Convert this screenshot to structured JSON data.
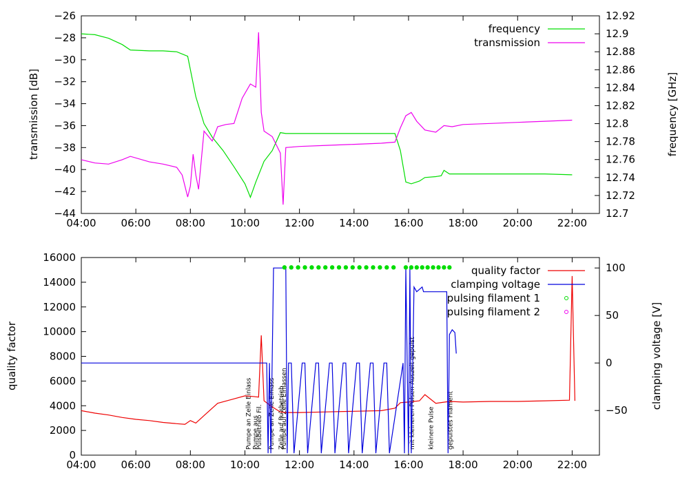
{
  "chart_data": [
    {
      "type": "line",
      "xlabel": "",
      "x_ticks": [
        "04:00",
        "06:00",
        "08:00",
        "10:00",
        "12:00",
        "14:00",
        "16:00",
        "18:00",
        "20:00",
        "22:00"
      ],
      "xlim": [
        4,
        23
      ],
      "ylabel": "transmission [dB]",
      "ylim": [
        -44,
        -26
      ],
      "y_ticks": [
        "-44",
        "-42",
        "-40",
        "-38",
        "-36",
        "-34",
        "-32",
        "-30",
        "-28",
        "-26"
      ],
      "y2label": "frequency [GHz]",
      "y2lim": [
        12.7,
        12.92
      ],
      "y2_ticks": [
        "12.7",
        "12.72",
        "12.74",
        "12.76",
        "12.78",
        "12.8",
        "12.82",
        "12.84",
        "12.86",
        "12.88",
        "12.9",
        "12.92"
      ],
      "legend_position": "top-right",
      "series": [
        {
          "name": "frequency",
          "color": "#00dd00",
          "axis": "right",
          "x": [
            4.0,
            4.5,
            5.0,
            5.5,
            5.8,
            6.5,
            7.0,
            7.5,
            7.9,
            8.2,
            8.5,
            8.8,
            9.2,
            9.6,
            10.0,
            10.2,
            10.4,
            10.7,
            11.0,
            11.3,
            11.5,
            12.0,
            13.0,
            14.0,
            15.0,
            15.5,
            15.7,
            15.9,
            16.1,
            16.4,
            16.6,
            17.0,
            17.2,
            17.3,
            17.5,
            18.0,
            19.0,
            20.0,
            21.0,
            22.0
          ],
          "y": [
            12.9,
            12.899,
            12.895,
            12.888,
            12.882,
            12.881,
            12.881,
            12.88,
            12.875,
            12.83,
            12.8,
            12.785,
            12.77,
            12.752,
            12.733,
            12.718,
            12.735,
            12.758,
            12.77,
            12.79,
            12.789,
            12.789,
            12.789,
            12.789,
            12.789,
            12.789,
            12.77,
            12.735,
            12.733,
            12.736,
            12.74,
            12.741,
            12.742,
            12.748,
            12.744,
            12.744,
            12.744,
            12.744,
            12.744,
            12.743
          ]
        },
        {
          "name": "transmission",
          "color": "#ee00ee",
          "axis": "left",
          "x": [
            4.0,
            4.5,
            5.0,
            5.5,
            5.8,
            6.5,
            7.0,
            7.5,
            7.7,
            7.9,
            8.0,
            8.1,
            8.2,
            8.3,
            8.5,
            8.8,
            9.0,
            9.3,
            9.6,
            9.9,
            10.2,
            10.4,
            10.5,
            10.6,
            10.7,
            11.0,
            11.3,
            11.4,
            11.5,
            12.0,
            13.0,
            14.0,
            15.0,
            15.5,
            15.7,
            15.9,
            16.1,
            16.3,
            16.6,
            17.0,
            17.3,
            17.6,
            18.0,
            19.0,
            20.0,
            21.0,
            22.0
          ],
          "y": [
            -39.1,
            -39.4,
            -39.5,
            -39.1,
            -38.8,
            -39.3,
            -39.5,
            -39.8,
            -40.5,
            -42.5,
            -41.5,
            -38.6,
            -40.5,
            -41.8,
            -36.5,
            -37.4,
            -36.1,
            -35.9,
            -35.8,
            -33.5,
            -32.2,
            -32.5,
            -27.5,
            -34.8,
            -36.5,
            -37.0,
            -38.5,
            -43.2,
            -38.0,
            -37.9,
            -37.8,
            -37.7,
            -37.6,
            -37.5,
            -36.2,
            -35.1,
            -34.8,
            -35.6,
            -36.4,
            -36.6,
            -36.0,
            -36.1,
            -35.9,
            -35.8,
            -35.7,
            -35.6,
            -35.5
          ]
        }
      ]
    },
    {
      "type": "line",
      "xlabel": "",
      "x_ticks": [
        "04:00",
        "06:00",
        "08:00",
        "10:00",
        "12:00",
        "14:00",
        "16:00",
        "18:00",
        "20:00",
        "22:00"
      ],
      "xlim": [
        4,
        23
      ],
      "ylabel": "quality factor",
      "ylim": [
        0,
        16000
      ],
      "y_ticks": [
        "0",
        "2000",
        "4000",
        "6000",
        "8000",
        "10000",
        "12000",
        "14000",
        "16000"
      ],
      "y2label": "clamping voltage [V]",
      "y2lim": [
        -97,
        111
      ],
      "y2_ticks": [
        "-50",
        "0",
        "50",
        "100"
      ],
      "legend_position": "top-right",
      "series": [
        {
          "name": "quality factor",
          "color": "#ee0000",
          "axis": "left",
          "x": [
            4.0,
            4.5,
            5.0,
            5.5,
            6.0,
            6.5,
            7.0,
            7.5,
            7.8,
            8.0,
            8.2,
            8.5,
            8.8,
            9.0,
            9.5,
            10.0,
            10.3,
            10.5,
            10.6,
            10.7,
            11.0,
            11.3,
            11.5,
            12.0,
            13.0,
            14.0,
            15.0,
            15.5,
            15.7,
            16.0,
            16.4,
            16.6,
            17.0,
            17.5,
            18.0,
            19.0,
            20.0,
            21.0,
            21.9,
            22.0,
            22.1
          ],
          "y": [
            3600,
            3400,
            3250,
            3050,
            2900,
            2800,
            2650,
            2550,
            2500,
            2800,
            2600,
            3200,
            3800,
            4200,
            4500,
            4800,
            4750,
            4700,
            9700,
            4400,
            3900,
            3500,
            3450,
            3450,
            3500,
            3550,
            3600,
            3800,
            4250,
            4300,
            4400,
            4900,
            4200,
            4350,
            4300,
            4350,
            4350,
            4400,
            4450,
            14500,
            4400
          ]
        },
        {
          "name": "clamping voltage",
          "color": "#0000dd",
          "axis": "right",
          "x": [
            4.0,
            10.8,
            10.85,
            10.9,
            10.95,
            11.05,
            11.1,
            11.5,
            11.55,
            11.6,
            11.7,
            11.8,
            12.1,
            12.2,
            12.3,
            12.6,
            12.7,
            12.8,
            13.1,
            13.2,
            13.3,
            13.6,
            13.7,
            13.8,
            14.1,
            14.2,
            14.3,
            14.6,
            14.7,
            14.8,
            15.1,
            15.2,
            15.3,
            15.8,
            15.85,
            15.9,
            16.0,
            16.05,
            16.1,
            16.2,
            16.3,
            16.5,
            16.55,
            16.6,
            17.4,
            17.45,
            17.5,
            17.6,
            17.7,
            17.75
          ],
          "y": [
            0,
            0,
            -95,
            0,
            -95,
            100,
            100,
            100,
            -95,
            0,
            0,
            -95,
            0,
            0,
            -95,
            0,
            0,
            -95,
            0,
            0,
            -95,
            0,
            0,
            -95,
            0,
            0,
            -95,
            0,
            0,
            -95,
            0,
            0,
            -95,
            0,
            -95,
            100,
            -95,
            100,
            -95,
            80,
            75,
            80,
            75,
            75,
            75,
            -95,
            30,
            35,
            32,
            10
          ]
        },
        {
          "name": "pulsing filament 1",
          "color": "#00dd00",
          "axis": "left",
          "x": [
            11.45,
            11.7,
            11.95,
            12.2,
            12.45,
            12.7,
            12.95,
            13.2,
            13.45,
            13.7,
            13.95,
            14.2,
            14.45,
            14.7,
            14.95,
            15.2,
            15.45,
            15.9,
            16.1,
            16.3,
            16.5,
            16.7,
            16.9,
            17.1,
            17.3,
            17.5
          ],
          "y": [
            15200,
            15200,
            15200,
            15200,
            15200,
            15200,
            15200,
            15200,
            15200,
            15200,
            15200,
            15200,
            15200,
            15200,
            15200,
            15200,
            15200,
            15200,
            15200,
            15200,
            15200,
            15200,
            15200,
            15200,
            15200,
            15200
          ]
        },
        {
          "name": "pulsing filament 2",
          "color": "#ee00ee",
          "axis": "left",
          "x": [],
          "y": []
        }
      ],
      "annotations": [
        {
          "text": "Pumpe an Zelle Einlass",
          "x": 10.2
        },
        {
          "text": "Pumpe aus",
          "x": 10.45
        },
        {
          "text": "Pulsbetrieb Fil.",
          "x": 10.6
        },
        {
          "text": "Pumpe an Zelle Einlass",
          "x": 11.05
        },
        {
          "text": "Zelle auf Pulsbetrieb",
          "x": 11.4
        },
        {
          "text": "Pumpe auf Zelle Einlassen",
          "x": 11.5
        },
        {
          "text": "mit kleineren Pulsen Auszeit gepulst",
          "x": 16.2
        },
        {
          "text": "kleinere Pulse",
          "x": 16.9
        },
        {
          "text": "gepulstes Filament",
          "x": 17.6
        }
      ]
    }
  ]
}
